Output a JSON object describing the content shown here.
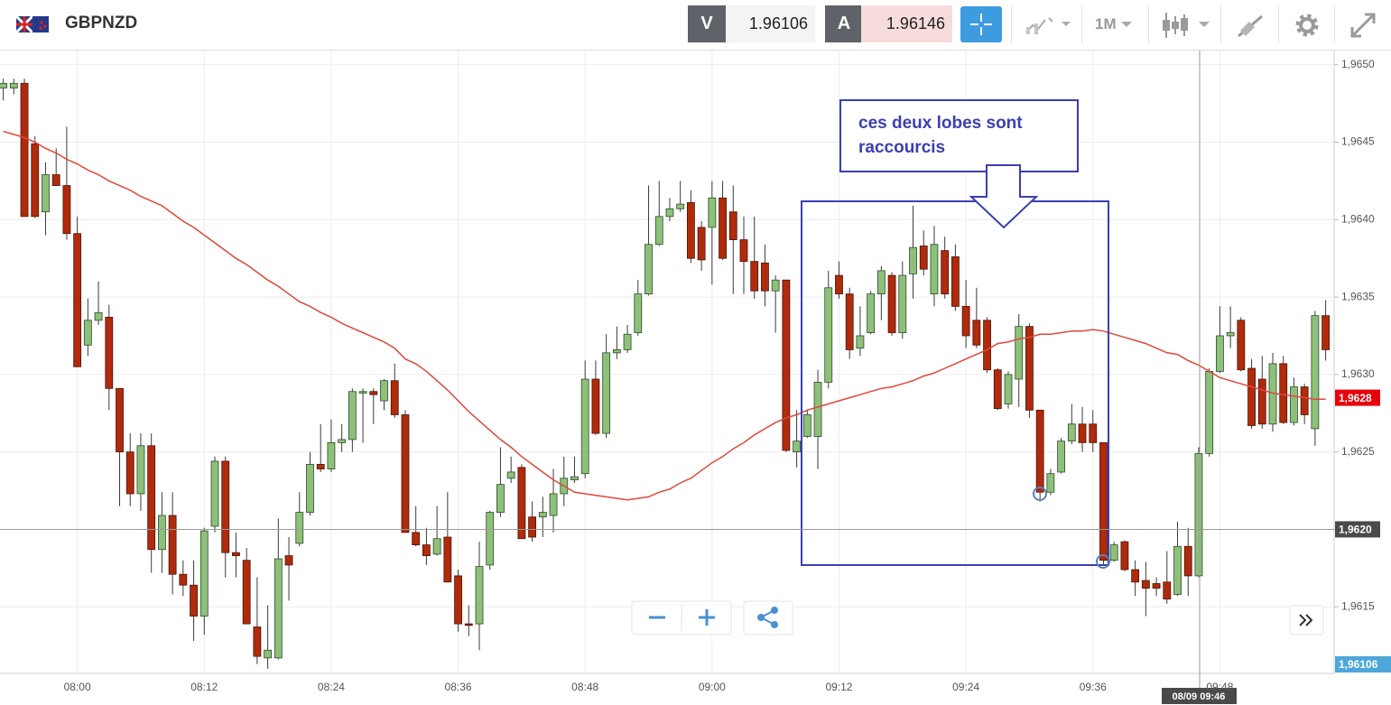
{
  "toolbar": {
    "symbol": "GBPNZD",
    "sell_label": "V",
    "sell": "1.96106",
    "buy_label": "A",
    "buy": "1.96146",
    "timeframe": "1M"
  },
  "chart_data": {
    "type": "candlestick",
    "categories": [
      null,
      null,
      null,
      null,
      null,
      null,
      null,
      "08:00",
      null,
      null,
      null,
      null,
      null,
      null,
      null,
      null,
      null,
      null,
      null,
      "08:12",
      null,
      null,
      null,
      null,
      null,
      null,
      null,
      null,
      null,
      null,
      null,
      "08:24",
      null,
      null,
      null,
      null,
      null,
      null,
      null,
      null,
      null,
      null,
      null,
      "08:36",
      null,
      null,
      null,
      null,
      null,
      null,
      null,
      null,
      null,
      null,
      null,
      "08:48",
      null,
      null,
      null,
      null,
      null,
      null,
      null,
      null,
      null,
      null,
      null,
      "09:00",
      null,
      null,
      null,
      null,
      null,
      null,
      null,
      null,
      null,
      null,
      null,
      "09:12",
      null,
      null,
      null,
      null,
      null,
      null,
      null,
      null,
      null,
      null,
      null,
      "09:24",
      null,
      null,
      null,
      null,
      null,
      null,
      null,
      null,
      null,
      null,
      null,
      "09:36",
      null,
      null,
      null,
      null,
      null,
      null,
      null,
      null,
      null,
      null,
      null,
      "09:48",
      null,
      null,
      null,
      null,
      null,
      null,
      null,
      null,
      null,
      null
    ],
    "open": [
      1.96485,
      1.96485,
      1.96488,
      1.96449,
      1.96405,
      1.96429,
      1.96422,
      1.96391,
      1.96319,
      1.96335,
      1.96337,
      1.96291,
      1.9625,
      1.96223,
      1.96254,
      1.96187,
      1.96209,
      1.96171,
      1.96164,
      1.96144,
      1.96202,
      1.96244,
      1.96185,
      1.9618,
      1.96137,
      1.96117,
      1.96117,
      1.96183,
      1.96191,
      1.96211,
      1.96242,
      1.96239,
      1.96256,
      1.96258,
      1.96288,
      1.96289,
      1.96283,
      1.96296,
      1.96274,
      1.96198,
      1.9619,
      1.96184,
      1.96195,
      1.9617,
      1.96139,
      1.96139,
      1.96177,
      1.96211,
      1.96233,
      1.9624,
      1.96208,
      1.96208,
      1.96209,
      1.96223,
      1.96232,
      1.96236,
      1.96297,
      1.96262,
      1.96314,
      1.96316,
      1.96327,
      1.96352,
      1.96384,
      1.96402,
      1.96407,
      1.96411,
      1.96395,
      1.96395,
      1.96414,
      1.96405,
      1.96387,
      1.96373,
      1.96372,
      1.96354,
      1.96361,
      1.9625,
      1.9626,
      1.9626,
      1.96295,
      1.96364,
      1.96352,
      1.96317,
      1.96327,
      1.96352,
      1.96364,
      1.96327,
      1.96365,
      1.96383,
      1.96352,
      1.9638,
      1.96376,
      1.96344,
      1.96335,
      1.96335,
      1.96303,
      1.96281,
      1.96297,
      1.96331,
      1.96277,
      1.96224,
      1.96237,
      1.96257,
      1.96268,
      1.96268,
      1.96256,
      1.9618,
      1.96192,
      1.96174,
      1.96167,
      1.96165,
      1.96166,
      1.96158,
      1.96189,
      1.9617,
      1.96249,
      1.96302,
      1.96325,
      1.96335,
      1.96304,
      1.96297,
      1.96268,
      1.96307,
      1.96269,
      1.96292,
      1.96265,
      1.96338
    ],
    "high": [
      1.96491,
      1.96491,
      1.96491,
      1.96454,
      1.96437,
      1.96446,
      1.9646,
      1.96402,
      1.96349,
      1.9636,
      1.96345,
      1.96291,
      1.96262,
      1.96262,
      1.96262,
      1.96224,
      1.96224,
      1.9618,
      1.9618,
      1.96201,
      1.96247,
      1.96247,
      1.96198,
      1.96188,
      1.96169,
      1.96151,
      1.96207,
      1.96195,
      1.96224,
      1.9625,
      1.96268,
      1.96271,
      1.96268,
      1.96291,
      1.96291,
      1.96291,
      1.96297,
      1.96307,
      1.96277,
      1.96215,
      1.96201,
      1.96215,
      1.96224,
      1.96174,
      1.96151,
      1.96192,
      1.96212,
      1.96253,
      1.96247,
      1.96242,
      1.96218,
      1.96221,
      1.96239,
      1.96247,
      1.96247,
      1.96309,
      1.96309,
      1.96326,
      1.96331,
      1.96332,
      1.96361,
      1.96422,
      1.96425,
      1.96414,
      1.96425,
      1.96419,
      1.96399,
      1.96425,
      1.96425,
      1.96422,
      1.96402,
      1.96402,
      1.96384,
      1.96364,
      1.96361,
      1.96277,
      1.96277,
      1.96303,
      1.96367,
      1.96373,
      1.96356,
      1.96344,
      1.96354,
      1.9637,
      1.96366,
      1.96373,
      1.96409,
      1.96393,
      1.96396,
      1.96389,
      1.96384,
      1.96361,
      1.96356,
      1.96337,
      1.96304,
      1.96302,
      1.96339,
      1.96333,
      1.96277,
      1.96239,
      1.96259,
      1.96281,
      1.96279,
      1.96277,
      1.96256,
      1.96192,
      1.96193,
      1.9618,
      1.96179,
      1.96169,
      1.96186,
      1.96205,
      1.96201,
      1.96253,
      1.96304,
      1.96344,
      1.96344,
      1.96337,
      1.9631,
      1.96312,
      1.96314,
      1.96312,
      1.96298,
      1.96294,
      1.96341,
      1.96348
    ],
    "low": [
      1.96477,
      1.96481,
      1.96402,
      1.96401,
      1.9639,
      1.96422,
      1.96387,
      1.96305,
      1.96312,
      1.96332,
      1.96277,
      1.96215,
      1.96215,
      1.96212,
      1.96172,
      1.96172,
      1.96158,
      1.96157,
      1.96128,
      1.96132,
      1.96198,
      1.96169,
      1.96169,
      1.96139,
      1.96113,
      1.9611,
      1.96116,
      1.96154,
      1.96189,
      1.96209,
      1.96237,
      1.96237,
      1.9625,
      1.9625,
      1.96256,
      1.96268,
      1.96277,
      1.96272,
      1.96198,
      1.96189,
      1.96177,
      1.96183,
      1.96166,
      1.96134,
      1.96131,
      1.96122,
      1.96174,
      1.96208,
      1.9623,
      1.96194,
      1.96192,
      1.96195,
      1.96198,
      1.96215,
      1.9623,
      1.96233,
      1.96261,
      1.96259,
      1.9631,
      1.96314,
      1.96325,
      1.96351,
      1.96383,
      1.96399,
      1.96405,
      1.96372,
      1.96367,
      1.96358,
      1.96374,
      1.96352,
      1.96352,
      1.96349,
      1.96344,
      1.96327,
      1.9625,
      1.9624,
      1.96259,
      1.96239,
      1.96291,
      1.96349,
      1.9631,
      1.96312,
      1.96326,
      1.96335,
      1.96325,
      1.96323,
      1.96349,
      1.96364,
      1.96344,
      1.96349,
      1.96341,
      1.96317,
      1.96317,
      1.96301,
      1.96277,
      1.96278,
      1.96279,
      1.96272,
      1.96218,
      1.96222,
      1.96236,
      1.96255,
      1.9625,
      1.9625,
      1.96177,
      1.96179,
      1.96173,
      1.96157,
      1.96144,
      1.96157,
      1.96152,
      1.96157,
      1.96157,
      1.96169,
      1.96247,
      1.96301,
      1.96317,
      1.96302,
      1.96265,
      1.96265,
      1.96263,
      1.96268,
      1.96267,
      1.96268,
      1.96254,
      1.96309
    ],
    "close": [
      1.96488,
      1.96488,
      1.96402,
      1.96402,
      1.96429,
      1.96422,
      1.96391,
      1.96305,
      1.96335,
      1.9634,
      1.96291,
      1.9625,
      1.96223,
      1.96254,
      1.96187,
      1.96209,
      1.96171,
      1.96164,
      1.96144,
      1.96199,
      1.96244,
      1.96185,
      1.96183,
      1.96139,
      1.96118,
      1.96122,
      1.96181,
      1.96177,
      1.96211,
      1.96242,
      1.96239,
      1.96256,
      1.96258,
      1.96289,
      1.96289,
      1.96287,
      1.96296,
      1.96274,
      1.96198,
      1.9619,
      1.96183,
      1.96194,
      1.96166,
      1.96139,
      1.96138,
      1.96176,
      1.96211,
      1.96229,
      1.96237,
      1.96194,
      1.96195,
      1.96211,
      1.96223,
      1.96233,
      1.96234,
      1.96297,
      1.96262,
      1.96314,
      1.96316,
      1.96326,
      1.96352,
      1.96384,
      1.96402,
      1.96407,
      1.9641,
      1.96375,
      1.96374,
      1.96414,
      1.96375,
      1.96387,
      1.96373,
      1.96354,
      1.96354,
      1.96361,
      1.96251,
      1.96257,
      1.96274,
      1.96295,
      1.96356,
      1.96352,
      1.96316,
      1.96325,
      1.96352,
      1.96367,
      1.96327,
      1.96364,
      1.96382,
      1.96368,
      1.96384,
      1.96352,
      1.96344,
      1.96325,
      1.96319,
      1.96303,
      1.96278,
      1.963,
      1.96331,
      1.96277,
      1.96224,
      1.96236,
      1.96257,
      1.96268,
      1.96256,
      1.96256,
      1.9618,
      1.9619,
      1.96174,
      1.96166,
      1.96162,
      1.96162,
      1.96155,
      1.96189,
      1.9617,
      1.96249,
      1.96302,
      1.96325,
      1.96327,
      1.96303,
      1.96267,
      1.96268,
      1.96307,
      1.96269,
      1.96292,
      1.96274,
      1.96338,
      1.96316
    ],
    "up_color": "#8dc07a",
    "down_color": "#b02a0c",
    "moving_average": {
      "color": "#e2463c",
      "values": [
        1.96457,
        1.96455,
        1.96453,
        1.9645,
        1.96446,
        1.96443,
        1.96439,
        1.96436,
        1.96432,
        1.96429,
        1.96425,
        1.96422,
        1.96419,
        1.96415,
        1.96412,
        1.96409,
        1.96404,
        1.96399,
        1.96395,
        1.9639,
        1.96385,
        1.9638,
        1.96375,
        1.96371,
        1.96366,
        1.96361,
        1.96357,
        1.96352,
        1.96347,
        1.96344,
        1.9634,
        1.96337,
        1.96333,
        1.9633,
        1.96327,
        1.96324,
        1.96321,
        1.96317,
        1.9631,
        1.96307,
        1.96302,
        1.96296,
        1.9629,
        1.96283,
        1.96276,
        1.9627,
        1.96264,
        1.96258,
        1.96253,
        1.96247,
        1.96242,
        1.96237,
        1.96232,
        1.96228,
        1.96224,
        1.96223,
        1.96222,
        1.96221,
        1.9622,
        1.96219,
        1.9622,
        1.96221,
        1.96224,
        1.96226,
        1.9623,
        1.96233,
        1.96238,
        1.96243,
        1.96247,
        1.96252,
        1.96256,
        1.96261,
        1.96265,
        1.96269,
        1.96272,
        1.96274,
        1.96277,
        1.96279,
        1.96281,
        1.96283,
        1.96285,
        1.96287,
        1.96289,
        1.96291,
        1.96292,
        1.96294,
        1.96296,
        1.96299,
        1.96301,
        1.96304,
        1.96307,
        1.9631,
        1.96313,
        1.96316,
        1.9632,
        1.96321,
        1.96323,
        1.96324,
        1.96326,
        1.96326,
        1.96327,
        1.96328,
        1.96328,
        1.96329,
        1.96328,
        1.96326,
        1.96324,
        1.96322,
        1.9632,
        1.96317,
        1.96314,
        1.96313,
        1.96309,
        1.96306,
        1.96302,
        1.96298,
        1.96296,
        1.96294,
        1.96292,
        1.9629,
        1.96288,
        1.96287,
        1.96286,
        1.96285,
        1.96284,
        1.96284
      ]
    },
    "ylim": [
      1.96107,
      1.96508
    ],
    "yticks": [
      {
        "value": 1.9615,
        "label": "1,9615"
      },
      {
        "value": 1.962,
        "label": "1,9620"
      },
      {
        "value": 1.9625,
        "label": "1,9625"
      },
      {
        "value": 1.963,
        "label": "1,9630"
      },
      {
        "value": 1.9635,
        "label": "1,9635"
      },
      {
        "value": 1.964,
        "label": "1,9640"
      },
      {
        "value": 1.9645,
        "label": "1,9645"
      },
      {
        "value": 1.965,
        "label": "1,9650"
      }
    ],
    "grid": true,
    "price_tags": [
      {
        "value": 1.96285,
        "label": "1,9628",
        "color": "#e8000b"
      },
      {
        "value": 1.962,
        "label": "1,9620",
        "color": "#4a4a4a"
      },
      {
        "value": 1.96106,
        "label": "1,96106",
        "color": "#4da7d9"
      }
    ],
    "crosshair_label": "08/09 09:46",
    "annotation": {
      "lines": [
        "ces deux lobes sont",
        "raccourcis"
      ]
    }
  }
}
